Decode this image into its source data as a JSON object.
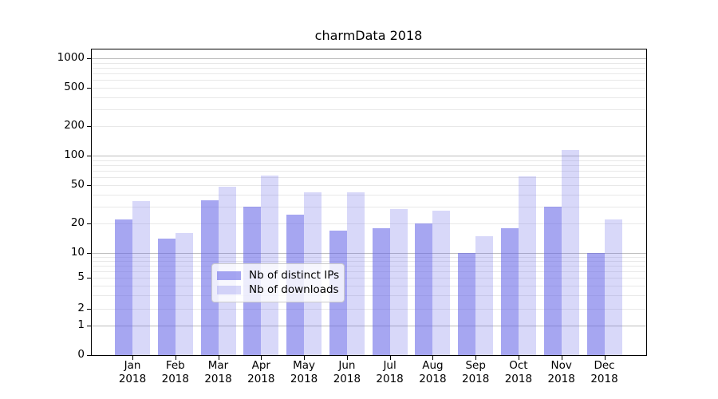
{
  "chart_data": {
    "type": "bar",
    "title": "charmData 2018",
    "categories": [
      "Jan",
      "Feb",
      "Mar",
      "Apr",
      "May",
      "Jun",
      "Jul",
      "Aug",
      "Sep",
      "Oct",
      "Nov",
      "Dec"
    ],
    "year_label": "2018",
    "series": [
      {
        "name": "Nb of distinct IPs",
        "color": "rgba(98,98,230,0.57)",
        "values": [
          22,
          14,
          35,
          30,
          25,
          17,
          18,
          20,
          10,
          18,
          30,
          10
        ]
      },
      {
        "name": "Nb of downloads",
        "color": "rgba(98,98,230,0.25)",
        "values": [
          34,
          16,
          48,
          63,
          42,
          42,
          28,
          27,
          15,
          61,
          115,
          22
        ]
      }
    ],
    "y_axis": {
      "scale": "symlog",
      "ticks": [
        0,
        1,
        2,
        5,
        10,
        20,
        50,
        100,
        200,
        500,
        1000
      ],
      "range": [
        0,
        1250
      ],
      "major_gridlines": [
        1,
        10,
        100,
        1000
      ],
      "minor_gridlines": [
        2,
        3,
        4,
        5,
        6,
        7,
        8,
        9,
        20,
        30,
        40,
        50,
        60,
        70,
        80,
        90,
        200,
        300,
        400,
        500,
        600,
        700,
        800,
        900
      ]
    },
    "x_axis": {
      "label_line2": "2018"
    },
    "legend": {
      "position": "lower-center",
      "entries": [
        "Nb of distinct IPs",
        "Nb of downloads"
      ]
    },
    "grid": true
  },
  "colors": {
    "background": "#ffffff",
    "grid_major": "#bdbdbd",
    "grid_minor": "#e8e8e8",
    "spine": "#000000",
    "legend_border": "#cccccc",
    "text": "#000000"
  }
}
